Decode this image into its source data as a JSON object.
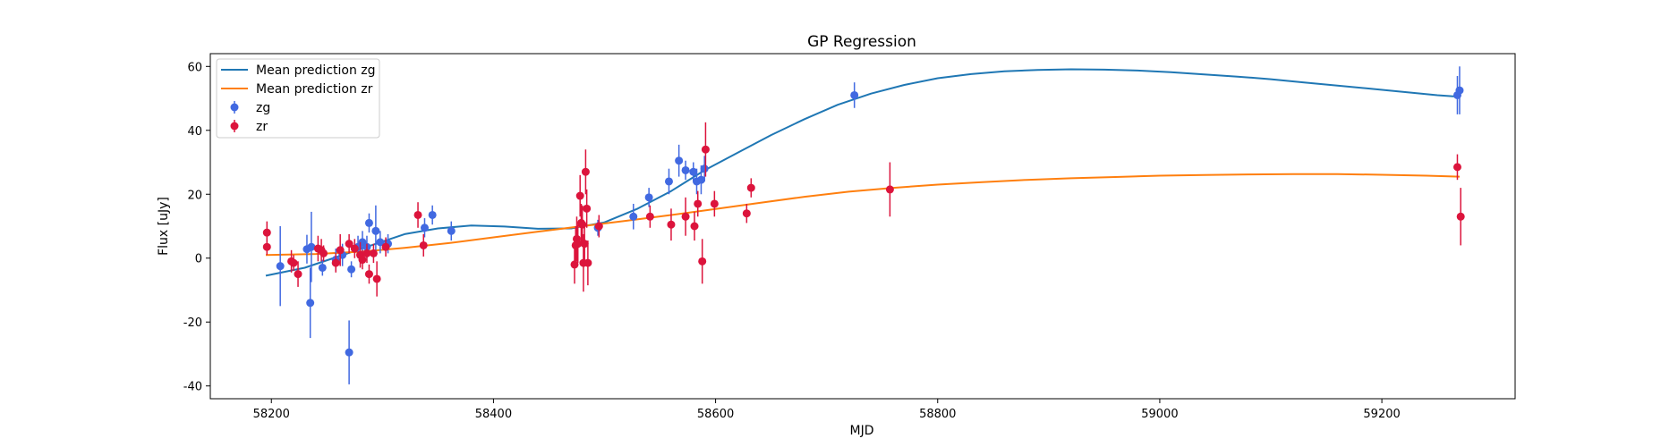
{
  "chart_data": {
    "type": "scatter",
    "title": "GP Regression",
    "xlabel": "MJD",
    "ylabel": "Flux [uJy]",
    "xlim": [
      58145,
      59320
    ],
    "ylim": [
      -44,
      64
    ],
    "xticks": [
      58200,
      58400,
      58600,
      58800,
      59000,
      59200
    ],
    "yticks": [
      -40,
      -20,
      0,
      20,
      40,
      60
    ],
    "grid": false,
    "legend_position": "top-left",
    "legend": [
      "Mean prediction zg",
      "Mean prediction zr",
      "zg",
      "zr"
    ],
    "series": [
      {
        "name": "Mean prediction zg",
        "kind": "line",
        "color": "#1f77b4",
        "x": [
          58195,
          58230,
          58260,
          58290,
          58320,
          58350,
          58380,
          58410,
          58440,
          58470,
          58500,
          58530,
          58560,
          58590,
          58620,
          58650,
          58680,
          58710,
          58740,
          58770,
          58800,
          58830,
          58860,
          58890,
          58920,
          58950,
          58980,
          59010,
          59040,
          59070,
          59100,
          59130,
          59160,
          59190,
          59220,
          59250,
          59270
        ],
        "y": [
          -5.5,
          -3.0,
          0.5,
          4.0,
          7.5,
          9.3,
          10.2,
          9.9,
          9.2,
          9.3,
          11.2,
          15.5,
          21.0,
          27.5,
          33.0,
          38.5,
          43.5,
          48.0,
          51.5,
          54.2,
          56.3,
          57.6,
          58.5,
          58.9,
          59.1,
          59.0,
          58.7,
          58.2,
          57.5,
          56.8,
          56.0,
          55.0,
          54.0,
          53.0,
          52.0,
          51.0,
          50.5
        ]
      },
      {
        "name": "Mean prediction zr",
        "kind": "line",
        "color": "#ff7f0e",
        "x": [
          58195,
          58240,
          58280,
          58320,
          58360,
          58400,
          58440,
          58480,
          58520,
          58560,
          58600,
          58640,
          58680,
          58720,
          58760,
          58800,
          58840,
          58880,
          58920,
          58960,
          59000,
          59040,
          59080,
          59120,
          59160,
          59200,
          59240,
          59270
        ],
        "y": [
          1.0,
          1.3,
          2.0,
          3.2,
          4.7,
          6.5,
          8.3,
          10.0,
          11.7,
          13.5,
          15.4,
          17.3,
          19.2,
          20.8,
          22.0,
          23.0,
          23.8,
          24.5,
          25.0,
          25.4,
          25.8,
          26.0,
          26.2,
          26.3,
          26.3,
          26.1,
          25.8,
          25.5
        ]
      },
      {
        "name": "zg",
        "kind": "errorbar",
        "color": "#4169e1",
        "points": [
          {
            "x": 58208,
            "y": -2.5,
            "err": 12.5
          },
          {
            "x": 58232,
            "y": 2.8,
            "err": 4.5
          },
          {
            "x": 58235,
            "y": -14,
            "err": 11
          },
          {
            "x": 58236,
            "y": 3.5,
            "err": 11
          },
          {
            "x": 58246,
            "y": -3,
            "err": 2.5
          },
          {
            "x": 58258,
            "y": -0.5,
            "err": 3.5
          },
          {
            "x": 58264,
            "y": 1,
            "err": 3.5
          },
          {
            "x": 58270,
            "y": -29.5,
            "err": 10
          },
          {
            "x": 58272,
            "y": -3.5,
            "err": 2.5
          },
          {
            "x": 58278,
            "y": 3.5,
            "err": 3.5
          },
          {
            "x": 58282,
            "y": 5,
            "err": 3.5
          },
          {
            "x": 58286,
            "y": 3.5,
            "err": 3.5
          },
          {
            "x": 58288,
            "y": 11,
            "err": 3
          },
          {
            "x": 58294,
            "y": 8.5,
            "err": 8
          },
          {
            "x": 58298,
            "y": 5,
            "err": 3.5
          },
          {
            "x": 58305,
            "y": 4.5,
            "err": 3
          },
          {
            "x": 58338,
            "y": 9.5,
            "err": 3
          },
          {
            "x": 58345,
            "y": 13.5,
            "err": 3
          },
          {
            "x": 58362,
            "y": 8.5,
            "err": 3
          },
          {
            "x": 58494,
            "y": 9.5,
            "err": 2.5
          },
          {
            "x": 58526,
            "y": 13,
            "err": 4
          },
          {
            "x": 58540,
            "y": 19,
            "err": 3
          },
          {
            "x": 58558,
            "y": 24,
            "err": 4
          },
          {
            "x": 58567,
            "y": 30.5,
            "err": 5
          },
          {
            "x": 58573,
            "y": 27.5,
            "err": 3
          },
          {
            "x": 58580,
            "y": 27,
            "err": 3
          },
          {
            "x": 58583,
            "y": 24,
            "err": 4
          },
          {
            "x": 58587,
            "y": 24.5,
            "err": 4.5
          },
          {
            "x": 58590,
            "y": 28,
            "err": 4
          },
          {
            "x": 58725,
            "y": 51,
            "err": 4
          },
          {
            "x": 59268,
            "y": 51,
            "err": 6
          },
          {
            "x": 59270,
            "y": 52.5,
            "err": 7.5
          }
        ]
      },
      {
        "name": "zr",
        "kind": "errorbar",
        "color": "#dc143c",
        "points": [
          {
            "x": 58196,
            "y": 8,
            "err": 3.5
          },
          {
            "x": 58196,
            "y": 3.5,
            "err": 2.5
          },
          {
            "x": 58218,
            "y": -1,
            "err": 3.5
          },
          {
            "x": 58220,
            "y": -1.5,
            "err": 2.5
          },
          {
            "x": 58224,
            "y": -5,
            "err": 4
          },
          {
            "x": 58242,
            "y": 3,
            "err": 4
          },
          {
            "x": 58245,
            "y": 2.5,
            "err": 3.5
          },
          {
            "x": 58247,
            "y": 1.5,
            "err": 2.5
          },
          {
            "x": 58258,
            "y": -1.5,
            "err": 3
          },
          {
            "x": 58262,
            "y": 2.5,
            "err": 5
          },
          {
            "x": 58270,
            "y": 4.5,
            "err": 3
          },
          {
            "x": 58275,
            "y": 3,
            "err": 3
          },
          {
            "x": 58280,
            "y": 1,
            "err": 4
          },
          {
            "x": 58282,
            "y": -0.5,
            "err": 3
          },
          {
            "x": 58286,
            "y": 1.5,
            "err": 3
          },
          {
            "x": 58288,
            "y": -5,
            "err": 3
          },
          {
            "x": 58292,
            "y": 1.5,
            "err": 3
          },
          {
            "x": 58295,
            "y": -6.5,
            "err": 5.5
          },
          {
            "x": 58303,
            "y": 3.5,
            "err": 3
          },
          {
            "x": 58332,
            "y": 13.5,
            "err": 4
          },
          {
            "x": 58337,
            "y": 4,
            "err": 3.5
          },
          {
            "x": 58473,
            "y": -2,
            "err": 6
          },
          {
            "x": 58474,
            "y": 4,
            "err": 6
          },
          {
            "x": 58475,
            "y": 6,
            "err": 7
          },
          {
            "x": 58476,
            "y": 4.5,
            "err": 6
          },
          {
            "x": 58478,
            "y": 19.5,
            "err": 6.5
          },
          {
            "x": 58479,
            "y": 11,
            "err": 6
          },
          {
            "x": 58480,
            "y": 10.5,
            "err": 6
          },
          {
            "x": 58481,
            "y": -1.5,
            "err": 9
          },
          {
            "x": 58482,
            "y": 4.5,
            "err": 5.5
          },
          {
            "x": 58484,
            "y": 15.5,
            "err": 6
          },
          {
            "x": 58483,
            "y": 27,
            "err": 7
          },
          {
            "x": 58485,
            "y": -1.5,
            "err": 7
          },
          {
            "x": 58495,
            "y": 10,
            "err": 3.5
          },
          {
            "x": 58541,
            "y": 13,
            "err": 3.5
          },
          {
            "x": 58560,
            "y": 10.5,
            "err": 5
          },
          {
            "x": 58573,
            "y": 13,
            "err": 6
          },
          {
            "x": 58581,
            "y": 10,
            "err": 4.5
          },
          {
            "x": 58584,
            "y": 17,
            "err": 4
          },
          {
            "x": 58588,
            "y": -1,
            "err": 7
          },
          {
            "x": 58591,
            "y": 34,
            "err": 8.5
          },
          {
            "x": 58599,
            "y": 17,
            "err": 4
          },
          {
            "x": 58628,
            "y": 14,
            "err": 3
          },
          {
            "x": 58632,
            "y": 22,
            "err": 3
          },
          {
            "x": 58757,
            "y": 21.5,
            "err": 8.5
          },
          {
            "x": 59268,
            "y": 28.5,
            "err": 4
          },
          {
            "x": 59271,
            "y": 13,
            "err": 9
          }
        ]
      }
    ]
  }
}
